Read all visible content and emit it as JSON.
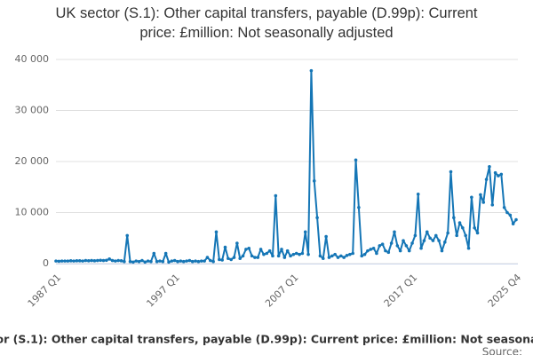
{
  "chart_data": {
    "type": "line",
    "title": "UK sector (S.1): Other capital transfers, payable (D.99p): Current price: £million: Not seasonally adjusted",
    "source": "Source:",
    "categories": [
      "1987 Q1",
      null,
      null,
      null,
      null,
      null,
      null,
      null,
      null,
      null,
      null,
      null,
      null,
      null,
      null,
      null,
      null,
      null,
      null,
      null,
      null,
      null,
      null,
      null,
      null,
      null,
      null,
      null,
      null,
      null,
      null,
      null,
      null,
      null,
      null,
      null,
      null,
      null,
      null,
      null,
      "1997 Q1",
      null,
      null,
      null,
      null,
      null,
      null,
      null,
      null,
      null,
      null,
      null,
      null,
      null,
      null,
      null,
      null,
      null,
      null,
      null,
      null,
      null,
      null,
      null,
      null,
      null,
      null,
      null,
      null,
      null,
      null,
      null,
      null,
      null,
      null,
      null,
      null,
      null,
      null,
      null,
      "2007 Q1",
      null,
      null,
      null,
      null,
      null,
      null,
      null,
      null,
      null,
      null,
      null,
      null,
      null,
      null,
      null,
      null,
      null,
      null,
      null,
      null,
      null,
      null,
      null,
      null,
      null,
      null,
      null,
      null,
      null,
      null,
      null,
      null,
      null,
      null,
      null,
      null,
      null,
      null,
      null,
      "2017 Q1",
      null,
      null,
      null,
      null,
      null,
      null,
      null,
      null,
      null,
      null,
      null,
      null,
      null,
      null,
      null,
      null,
      null,
      null,
      null,
      null,
      null,
      null,
      null,
      null,
      null,
      null,
      null,
      null,
      null,
      null,
      null,
      null,
      null,
      null,
      "2025 Q4"
    ],
    "series": [
      {
        "name": "UK sector (S.1): Other capital transfers, payable (D.99p): Current price: £million: Not seasonally adjusted",
        "color": "#1576b6",
        "values": [
          500,
          450,
          500,
          500,
          500,
          550,
          500,
          550,
          550,
          500,
          600,
          550,
          600,
          550,
          600,
          650,
          600,
          650,
          900,
          600,
          500,
          600,
          550,
          400,
          5500,
          400,
          300,
          500,
          400,
          600,
          300,
          500,
          400,
          2000,
          400,
          500,
          400,
          2000,
          300,
          500,
          600,
          400,
          500,
          400,
          500,
          600,
          400,
          500,
          400,
          500,
          500,
          1200,
          600,
          400,
          6200,
          800,
          700,
          3200,
          1000,
          800,
          1200,
          4000,
          1000,
          1500,
          2800,
          3000,
          1500,
          1200,
          1200,
          2800,
          1800,
          2000,
          2500,
          1500,
          13300,
          1500,
          2800,
          1200,
          2500,
          1500,
          1800,
          2000,
          1800,
          2000,
          6200,
          1800,
          37800,
          16200,
          9000,
          1500,
          1000,
          5300,
          1200,
          1500,
          1800,
          1200,
          1500,
          1200,
          1600,
          1800,
          2000,
          20300,
          11000,
          1500,
          1800,
          2500,
          2800,
          3000,
          2000,
          3500,
          3800,
          2500,
          2200,
          4000,
          6200,
          3500,
          2500,
          4500,
          3500,
          2500,
          4000,
          5500,
          13600,
          3000,
          4500,
          6200,
          5000,
          4500,
          5500,
          4500,
          2500,
          4200,
          6000,
          18000,
          9000,
          5500,
          8000,
          7000,
          5500,
          3000,
          13000,
          7000,
          6000,
          13500,
          12000,
          16500,
          19000,
          11500,
          17800,
          17200,
          17500,
          11000,
          10000,
          9500,
          7800,
          8600
        ]
      }
    ],
    "ylim": [
      0,
      40000
    ],
    "yticks": [
      0,
      {
        "value": 10000,
        "label": "10 000"
      },
      {
        "value": 20000,
        "label": "20 000"
      },
      {
        "value": 30000,
        "label": "30 000"
      },
      {
        "value": 40000,
        "label": "40 000"
      }
    ],
    "grid": true
  }
}
